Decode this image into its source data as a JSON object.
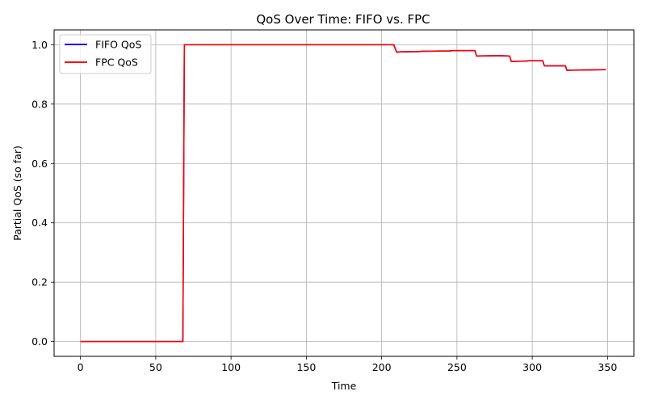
{
  "chart_data": {
    "type": "line",
    "title": "QoS Over Time: FIFO vs. FPC",
    "xlabel": "Time",
    "ylabel": "Partial QoS (so far)",
    "xlim": [
      -17.5,
      367.5
    ],
    "ylim": [
      -0.05,
      1.05
    ],
    "xticks": [
      0,
      50,
      100,
      150,
      200,
      250,
      300,
      350
    ],
    "yticks": [
      0.0,
      0.2,
      0.4,
      0.6,
      0.8,
      1.0
    ],
    "ytick_labels": [
      "0.0",
      "0.2",
      "0.4",
      "0.6",
      "0.8",
      "1.0"
    ],
    "grid": true,
    "legend_position": "top-left",
    "series": [
      {
        "name": "FIFO QoS",
        "color": "#0000ff",
        "x": [
          0,
          68,
          69,
          208,
          210,
          212,
          225,
          227,
          245,
          247,
          262,
          263,
          276,
          278,
          285,
          286,
          296,
          298,
          307,
          308,
          322,
          323,
          335,
          349
        ],
        "y": [
          0,
          0,
          1.0,
          1.0,
          0.975,
          0.976,
          0.977,
          0.978,
          0.979,
          0.98,
          0.98,
          0.962,
          0.963,
          0.963,
          0.962,
          0.944,
          0.945,
          0.946,
          0.946,
          0.929,
          0.929,
          0.914,
          0.915,
          0.916
        ]
      },
      {
        "name": "FPC QoS",
        "color": "#ff0000",
        "x": [
          0,
          68,
          69,
          208,
          210,
          212,
          225,
          227,
          245,
          247,
          262,
          263,
          276,
          278,
          285,
          286,
          296,
          298,
          307,
          308,
          322,
          323,
          335,
          349
        ],
        "y": [
          0,
          0,
          1.0,
          1.0,
          0.975,
          0.976,
          0.977,
          0.978,
          0.979,
          0.98,
          0.98,
          0.962,
          0.963,
          0.963,
          0.962,
          0.944,
          0.945,
          0.946,
          0.946,
          0.929,
          0.929,
          0.914,
          0.915,
          0.916
        ]
      }
    ]
  }
}
